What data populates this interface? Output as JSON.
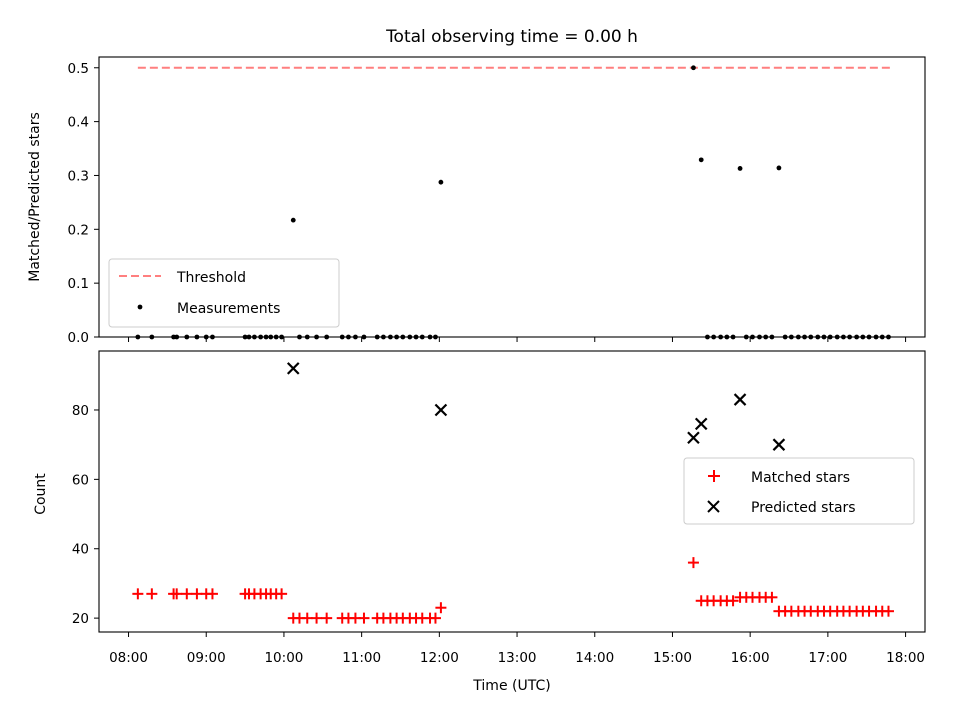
{
  "chart_data": [
    {
      "type": "scatter",
      "title": "Total observing time = 0.00 h",
      "xlabel": "",
      "ylabel": "Matched/Predicted stars",
      "xlim": [
        7.62,
        18.25
      ],
      "ylim": [
        0,
        0.52
      ],
      "yticks": [
        0.0,
        0.1,
        0.2,
        0.3,
        0.4,
        0.5
      ],
      "ytick_labels": [
        "0.0",
        "0.1",
        "0.2",
        "0.3",
        "0.4",
        "0.5"
      ],
      "legend_placement": "lower-left",
      "series": [
        {
          "name": "Threshold",
          "style": "dashed-line",
          "color": "#ff7f7f",
          "x": [
            8.12,
            17.8
          ],
          "values": [
            0.5,
            0.5
          ]
        },
        {
          "name": "Measurements",
          "style": "dot",
          "color": "#000000",
          "x": [
            8.12,
            8.3,
            8.58,
            8.62,
            8.75,
            8.88,
            9.0,
            9.08,
            9.5,
            9.55,
            9.62,
            9.7,
            9.77,
            9.83,
            9.9,
            9.97,
            10.12,
            10.2,
            10.3,
            10.42,
            10.55,
            10.75,
            10.83,
            10.92,
            11.03,
            11.2,
            11.28,
            11.37,
            11.45,
            11.53,
            11.62,
            11.7,
            11.78,
            11.88,
            11.95,
            12.02,
            15.27,
            15.37,
            15.45,
            15.53,
            15.62,
            15.7,
            15.78,
            15.87,
            15.95,
            16.03,
            16.12,
            16.2,
            16.28,
            16.37,
            16.45,
            16.53,
            16.62,
            16.7,
            16.78,
            16.87,
            16.95,
            17.03,
            17.12,
            17.2,
            17.28,
            17.37,
            17.45,
            17.53,
            17.62,
            17.7,
            17.78
          ],
          "values": [
            0.0,
            0.0,
            0.0,
            0.0,
            0.0,
            0.0,
            0.0,
            0.0,
            0.0,
            0.0,
            0.0,
            0.0,
            0.0,
            0.0,
            0.0,
            0.0,
            0.217,
            0.0,
            0.0,
            0.0,
            0.0,
            0.0,
            0.0,
            0.0,
            0.0,
            0.0,
            0.0,
            0.0,
            0.0,
            0.0,
            0.0,
            0.0,
            0.0,
            0.0,
            0.0,
            0.2875,
            0.5,
            0.329,
            0.0,
            0.0,
            0.0,
            0.0,
            0.0,
            0.313,
            0.0,
            0.0,
            0.0,
            0.0,
            0.0,
            0.314,
            0.0,
            0.0,
            0.0,
            0.0,
            0.0,
            0.0,
            0.0,
            0.0,
            0.0,
            0.0,
            0.0,
            0.0,
            0.0,
            0.0,
            0.0,
            0.0,
            0.0
          ]
        }
      ]
    },
    {
      "type": "scatter",
      "title": "",
      "xlabel": "Time (UTC)",
      "ylabel": "Count",
      "xlim": [
        7.62,
        18.25
      ],
      "ylim": [
        16,
        97
      ],
      "xticks": [
        8,
        9,
        10,
        11,
        12,
        13,
        14,
        15,
        16,
        17,
        18
      ],
      "xtick_labels": [
        "08:00",
        "09:00",
        "10:00",
        "11:00",
        "12:00",
        "13:00",
        "14:00",
        "15:00",
        "16:00",
        "17:00",
        "18:00"
      ],
      "yticks": [
        20,
        40,
        60,
        80
      ],
      "ytick_labels": [
        "20",
        "40",
        "60",
        "80"
      ],
      "legend_placement": "center-right",
      "series": [
        {
          "name": "Matched stars",
          "style": "plus",
          "color": "#ff0000",
          "x": [
            8.12,
            8.3,
            8.58,
            8.62,
            8.75,
            8.88,
            9.0,
            9.08,
            9.5,
            9.55,
            9.62,
            9.7,
            9.77,
            9.83,
            9.9,
            9.97,
            10.12,
            10.2,
            10.3,
            10.42,
            10.55,
            10.75,
            10.83,
            10.92,
            11.03,
            11.2,
            11.28,
            11.37,
            11.45,
            11.53,
            11.62,
            11.7,
            11.78,
            11.88,
            11.95,
            12.02,
            15.27,
            15.37,
            15.45,
            15.53,
            15.62,
            15.7,
            15.78,
            15.87,
            15.95,
            16.03,
            16.12,
            16.2,
            16.28,
            16.37,
            16.45,
            16.53,
            16.62,
            16.7,
            16.78,
            16.87,
            16.95,
            17.03,
            17.12,
            17.2,
            17.28,
            17.37,
            17.45,
            17.53,
            17.62,
            17.7,
            17.78
          ],
          "values": [
            27,
            27,
            27,
            27,
            27,
            27,
            27,
            27,
            27,
            27,
            27,
            27,
            27,
            27,
            27,
            27,
            20,
            20,
            20,
            20,
            20,
            20,
            20,
            20,
            20,
            20,
            20,
            20,
            20,
            20,
            20,
            20,
            20,
            20,
            20,
            23,
            36,
            25,
            25,
            25,
            25,
            25,
            25,
            26,
            26,
            26,
            26,
            26,
            26,
            22,
            22,
            22,
            22,
            22,
            22,
            22,
            22,
            22,
            22,
            22,
            22,
            22,
            22,
            22,
            22,
            22,
            22
          ]
        },
        {
          "name": "Predicted stars",
          "style": "x",
          "color": "#000000",
          "x": [
            10.12,
            12.02,
            15.27,
            15.37,
            15.87,
            16.37
          ],
          "values": [
            92,
            80,
            72,
            76,
            83,
            70
          ]
        }
      ]
    }
  ]
}
